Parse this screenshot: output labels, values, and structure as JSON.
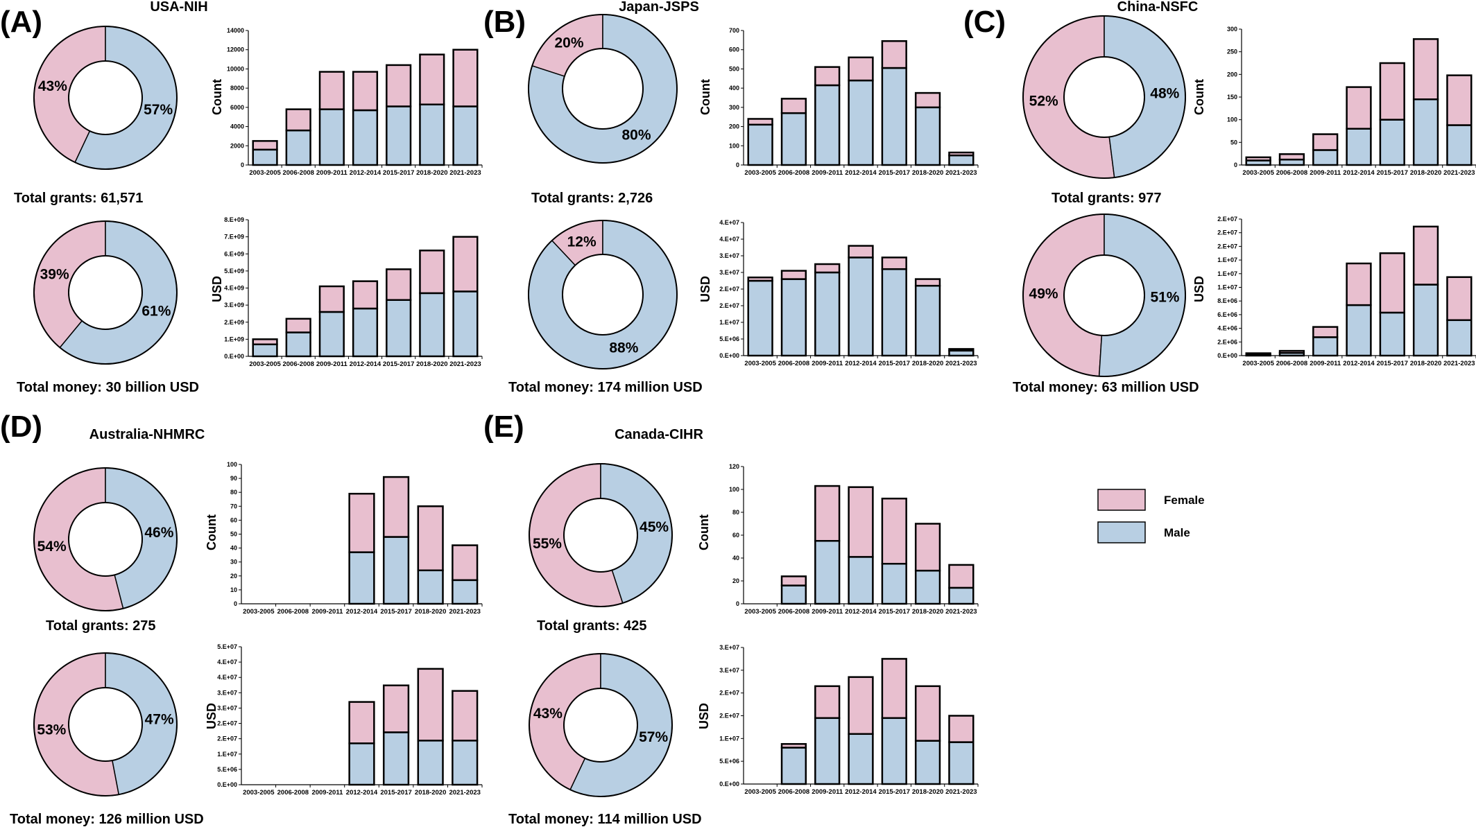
{
  "colors": {
    "female": "#e8bfcf",
    "male": "#b8cfe3",
    "stroke": "#000000"
  },
  "legend": [
    {
      "name": "Female",
      "color": "#e8bfcf"
    },
    {
      "name": "Male",
      "color": "#b8cfe3"
    }
  ],
  "chart_data": [
    {
      "type": "panel",
      "letter": "(A)",
      "title": "USA-NIH",
      "donuts": [
        {
          "female_pct": 43,
          "male_pct": 57,
          "female_label": "43%",
          "male_label": "57%",
          "caption": "Total grants: 61,571"
        },
        {
          "female_pct": 39,
          "male_pct": 61,
          "female_label": "39%",
          "male_label": "61%",
          "caption": "Total money: 30 billion USD"
        }
      ],
      "bars": [
        {
          "type": "bar",
          "ylabel": "Count",
          "ylim": [
            0,
            14000
          ],
          "yticks": [
            "0",
            "2000",
            "4000",
            "6000",
            "8000",
            "10000",
            "12000",
            "14000"
          ],
          "categories": [
            "2003-2005",
            "2006-2008",
            "2009-2011",
            "2012-2014",
            "2015-2017",
            "2018-2020",
            "2021-2023"
          ],
          "series": [
            {
              "name": "Male",
              "values": [
                1600,
                3600,
                5800,
                5700,
                6100,
                6300,
                6100
              ]
            },
            {
              "name": "Female",
              "values": [
                900,
                2200,
                3900,
                4000,
                4300,
                5200,
                5900
              ]
            }
          ]
        },
        {
          "type": "bar",
          "ylabel": "USD",
          "ylim": [
            0,
            8000000000
          ],
          "yticks": [
            "0.E+00",
            "1.E+09",
            "2.E+09",
            "3.E+09",
            "4.E+09",
            "5.E+09",
            "6.E+09",
            "7.E+09",
            "8.E+09"
          ],
          "categories": [
            "2003-2005",
            "2006-2008",
            "2009-2011",
            "2012-2014",
            "2015-2017",
            "2018-2020",
            "2021-2023"
          ],
          "series": [
            {
              "name": "Male",
              "values": [
                700000000,
                1400000000,
                2600000000,
                2800000000,
                3300000000,
                3700000000,
                3800000000
              ]
            },
            {
              "name": "Female",
              "values": [
                300000000,
                800000000,
                1500000000,
                1600000000,
                1800000000,
                2500000000,
                3200000000
              ]
            }
          ]
        }
      ]
    },
    {
      "type": "panel",
      "letter": "(B)",
      "title": "Japan-JSPS",
      "donuts": [
        {
          "female_pct": 20,
          "male_pct": 80,
          "female_label": "20%",
          "male_label": "80%",
          "caption": "Total grants: 2,726"
        },
        {
          "female_pct": 12,
          "male_pct": 88,
          "female_label": "12%",
          "male_label": "88%",
          "caption": "Total money: 174 million USD"
        }
      ],
      "bars": [
        {
          "type": "bar",
          "ylabel": "Count",
          "ylim": [
            0,
            700
          ],
          "yticks": [
            "0",
            "100",
            "200",
            "300",
            "400",
            "500",
            "600",
            "700"
          ],
          "categories": [
            "2003-2005",
            "2006-2008",
            "2009-2011",
            "2012-2014",
            "2015-2017",
            "2018-2020",
            "2021-2023"
          ],
          "series": [
            {
              "name": "Male",
              "values": [
                210,
                270,
                415,
                440,
                505,
                300,
                50
              ]
            },
            {
              "name": "Female",
              "values": [
                30,
                75,
                95,
                120,
                140,
                75,
                15
              ]
            }
          ]
        },
        {
          "type": "bar",
          "ylabel": "USD",
          "ylim": [
            0,
            40000000
          ],
          "yticks": [
            "0.E+00",
            "5.E+06",
            "1.E+07",
            "2.E+07",
            "2.E+07",
            "3.E+07",
            "3.E+07",
            "4.E+07",
            "4.E+07"
          ],
          "categories": [
            "2003-2005",
            "2006-2008",
            "2009-2011",
            "2012-2014",
            "2015-2017",
            "2018-2020",
            "2021-2023"
          ],
          "series": [
            {
              "name": "Male",
              "values": [
                22500000,
                23000000,
                25000000,
                29500000,
                26000000,
                21000000,
                1500000
              ]
            },
            {
              "name": "Female",
              "values": [
                1000000,
                2500000,
                2500000,
                3500000,
                3500000,
                2000000,
                500000
              ]
            }
          ]
        }
      ]
    },
    {
      "type": "panel",
      "letter": "(C)",
      "title": "China-NSFC",
      "donuts": [
        {
          "female_pct": 52,
          "male_pct": 48,
          "female_label": "52%",
          "male_label": "48%",
          "caption": "Total grants: 977"
        },
        {
          "female_pct": 49,
          "male_pct": 51,
          "female_label": "49%",
          "male_label": "51%",
          "caption": "Total money: 63 million USD"
        }
      ],
      "bars": [
        {
          "type": "bar",
          "ylabel": "Count",
          "ylim": [
            0,
            300
          ],
          "yticks": [
            "0",
            "50",
            "100",
            "150",
            "200",
            "250",
            "300"
          ],
          "categories": [
            "2003-2005",
            "2006-2008",
            "2009-2011",
            "2012-2014",
            "2015-2017",
            "2018-2020",
            "2021-2023"
          ],
          "series": [
            {
              "name": "Male",
              "values": [
                10,
                12,
                33,
                80,
                100,
                145,
                88
              ]
            },
            {
              "name": "Female",
              "values": [
                7,
                12,
                35,
                92,
                125,
                133,
                110
              ]
            }
          ]
        },
        {
          "type": "bar",
          "ylabel": "USD",
          "ylim": [
            0,
            20000000
          ],
          "yticks": [
            "0.E+00",
            "2.E+06",
            "4.E+06",
            "6.E+06",
            "8.E+06",
            "1.E+07",
            "1.E+07",
            "1.E+07",
            "2.E+07",
            "2.E+07",
            "2.E+07"
          ],
          "categories": [
            "2003-2005",
            "2006-2008",
            "2009-2011",
            "2012-2014",
            "2015-2017",
            "2018-2020",
            "2021-2023"
          ],
          "series": [
            {
              "name": "Male",
              "values": [
                200000,
                400000,
                2700000,
                7400000,
                6300000,
                10400000,
                5200000
              ]
            },
            {
              "name": "Female",
              "values": [
                150000,
                300000,
                1500000,
                6100000,
                8700000,
                8500000,
                6300000
              ]
            }
          ]
        }
      ]
    },
    {
      "type": "panel",
      "letter": "(D)",
      "title": "Australia-NHMRC",
      "donuts": [
        {
          "female_pct": 54,
          "male_pct": 46,
          "female_label": "54%",
          "male_label": "46%",
          "caption": "Total grants: 275"
        },
        {
          "female_pct": 53,
          "male_pct": 47,
          "female_label": "53%",
          "male_label": "47%",
          "caption": "Total money: 126 million USD"
        }
      ],
      "bars": [
        {
          "type": "bar",
          "ylabel": "Count",
          "ylim": [
            0,
            100
          ],
          "yticks": [
            "0",
            "10",
            "20",
            "30",
            "40",
            "50",
            "60",
            "70",
            "80",
            "90",
            "100"
          ],
          "categories": [
            "2003-2005",
            "2006-2008",
            "2009-2011",
            "2012-2014",
            "2015-2017",
            "2018-2020",
            "2021-2023"
          ],
          "series": [
            {
              "name": "Male",
              "values": [
                0,
                0,
                0,
                37,
                48,
                24,
                17
              ]
            },
            {
              "name": "Female",
              "values": [
                0,
                0,
                0,
                42,
                43,
                46,
                25
              ]
            }
          ]
        },
        {
          "type": "bar",
          "ylabel": "USD",
          "ylim": [
            0,
            50000000
          ],
          "yticks": [
            "0.E+00",
            "5.E+06",
            "1.E+07",
            "2.E+07",
            "2.E+07",
            "3.E+07",
            "3.E+07",
            "4.E+07",
            "4.E+07",
            "5.E+07"
          ],
          "categories": [
            "2003-2005",
            "2006-2008",
            "2009-2011",
            "2012-2014",
            "2015-2017",
            "2018-2020",
            "2021-2023"
          ],
          "series": [
            {
              "name": "Male",
              "values": [
                0,
                0,
                0,
                15000000,
                19000000,
                16000000,
                16000000
              ]
            },
            {
              "name": "Female",
              "values": [
                0,
                0,
                0,
                15000000,
                17000000,
                26000000,
                18000000
              ]
            }
          ]
        }
      ]
    },
    {
      "type": "panel",
      "letter": "(E)",
      "title": "Canada-CIHR",
      "donuts": [
        {
          "female_pct": 55,
          "male_pct": 45,
          "female_label": "55%",
          "male_label": "45%",
          "caption": "Total grants: 425"
        },
        {
          "female_pct": 43,
          "male_pct": 57,
          "female_label": "43%",
          "male_label": "57%",
          "caption": "Total money: 114 million USD"
        }
      ],
      "bars": [
        {
          "type": "bar",
          "ylabel": "Count",
          "ylim": [
            0,
            120
          ],
          "yticks": [
            "0",
            "20",
            "40",
            "60",
            "80",
            "100",
            "120"
          ],
          "categories": [
            "2003-2005",
            "2006-2008",
            "2009-2011",
            "2012-2014",
            "2015-2017",
            "2018-2020",
            "2021-2023"
          ],
          "series": [
            {
              "name": "Male",
              "values": [
                0,
                16,
                55,
                41,
                35,
                29,
                14
              ]
            },
            {
              "name": "Female",
              "values": [
                0,
                8,
                48,
                61,
                57,
                41,
                20
              ]
            }
          ]
        },
        {
          "type": "bar",
          "ylabel": "USD",
          "ylim": [
            0,
            30000000
          ],
          "yticks": [
            "0.E+00",
            "5.E+06",
            "1.E+07",
            "2.E+07",
            "2.E+07",
            "3.E+07",
            "3.E+07"
          ],
          "categories": [
            "2003-2005",
            "2006-2008",
            "2009-2011",
            "2012-2014",
            "2015-2017",
            "2018-2020",
            "2021-2023"
          ],
          "series": [
            {
              "name": "Male",
              "values": [
                0,
                8000000,
                14500000,
                11000000,
                14500000,
                9500000,
                9200000
              ]
            },
            {
              "name": "Female",
              "values": [
                0,
                800000,
                7000000,
                12500000,
                13000000,
                12000000,
                5800000
              ]
            }
          ]
        }
      ]
    }
  ]
}
